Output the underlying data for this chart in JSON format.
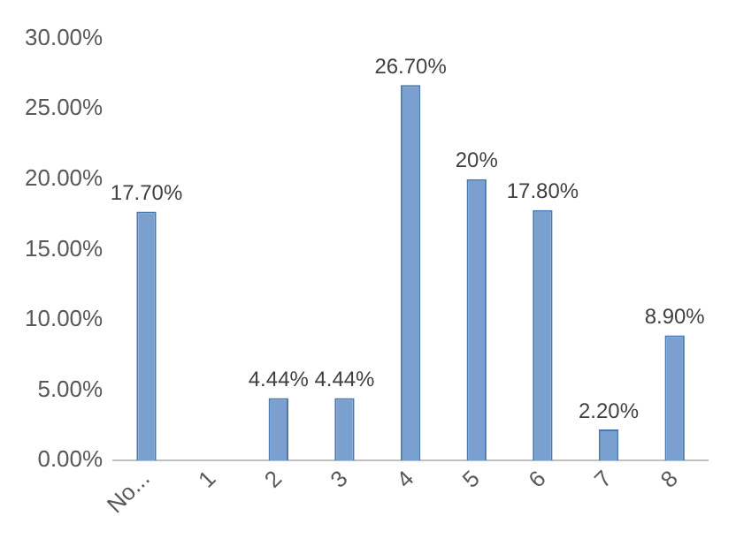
{
  "chart_data": {
    "type": "bar",
    "categories": [
      "No...",
      "1",
      "2",
      "3",
      "4",
      "5",
      "6",
      "7",
      "8"
    ],
    "values": [
      17.7,
      0,
      4.44,
      4.44,
      26.7,
      20,
      17.8,
      2.2,
      8.9
    ],
    "value_labels": [
      "17.70%",
      null,
      "4.44%",
      "4.44%",
      "26.70%",
      "20%",
      "17.80%",
      "2.20%",
      "8.90%"
    ],
    "color": "#7aa0cf",
    "ylim": [
      0,
      30
    ],
    "yticks": [
      {
        "value": 0,
        "label": "0.00%"
      },
      {
        "value": 5,
        "label": "5.00%"
      },
      {
        "value": 10,
        "label": "10.00%"
      },
      {
        "value": 15,
        "label": "15.00%"
      },
      {
        "value": 20,
        "label": "20.00%"
      },
      {
        "value": 25,
        "label": "25.00%"
      },
      {
        "value": 30,
        "label": "30.00%"
      }
    ],
    "grid": false,
    "legend": false
  }
}
